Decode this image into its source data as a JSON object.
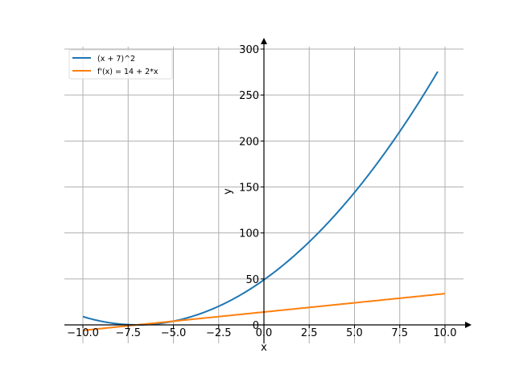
{
  "chart_data": {
    "type": "line",
    "title": "",
    "xlabel": "x",
    "ylabel": "y",
    "xlim": [
      -11,
      11
    ],
    "ylim": [
      -20,
      303
    ],
    "grid": true,
    "legend_position": "top-left",
    "x_ticks": [
      -10.0,
      -7.5,
      -5.0,
      -2.5,
      0.0,
      2.5,
      5.0,
      7.5,
      10.0
    ],
    "x_tick_labels": [
      "−10.0",
      "−7.5",
      "−5.0",
      "−2.5",
      "0.0",
      "2.5",
      "5.0",
      "7.5",
      "10.0"
    ],
    "y_ticks": [
      0,
      50,
      100,
      150,
      200,
      250,
      300
    ],
    "y_tick_labels": [
      "0",
      "50",
      "100",
      "150",
      "200",
      "250",
      "300"
    ],
    "series": [
      {
        "name": "(x + 7)^2",
        "color": "#1f77b4",
        "expression": "(x + 7)^2",
        "x_range": [
          -10,
          9.6
        ]
      },
      {
        "name": "f'(x) = 14 + 2*x",
        "color": "#ff7f0e",
        "expression": "14 + 2*x",
        "x_range": [
          -10,
          10
        ]
      }
    ]
  }
}
